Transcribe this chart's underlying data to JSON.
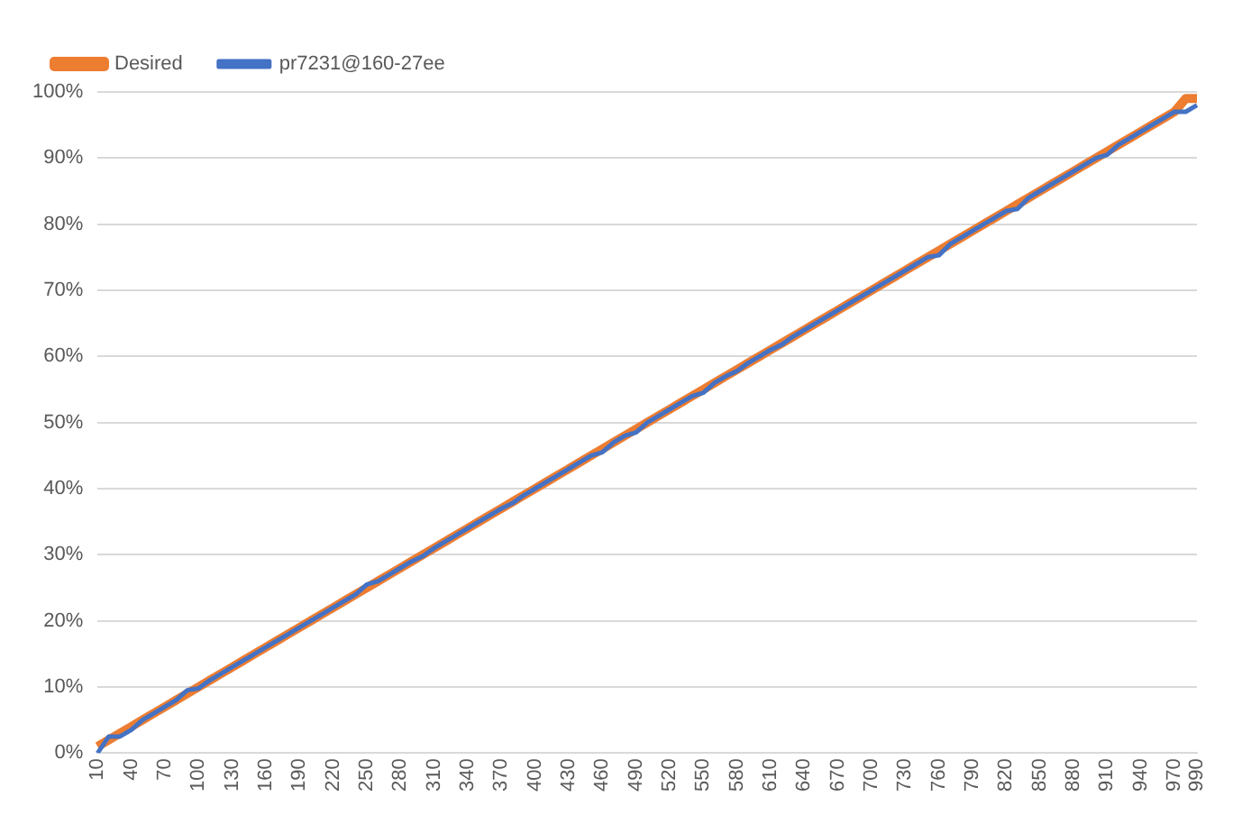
{
  "chart_data": {
    "type": "line",
    "categories": [
      "10",
      null,
      null,
      "40",
      null,
      null,
      "70",
      null,
      null,
      "100",
      null,
      null,
      "130",
      null,
      null,
      "160",
      null,
      null,
      "190",
      null,
      null,
      "220",
      null,
      null,
      "250",
      null,
      null,
      "280",
      null,
      null,
      "310",
      null,
      null,
      "340",
      null,
      null,
      "370",
      null,
      null,
      "400",
      null,
      null,
      "430",
      null,
      null,
      "460",
      null,
      null,
      "490",
      null,
      null,
      "520",
      null,
      null,
      "550",
      null,
      null,
      "580",
      null,
      null,
      "610",
      null,
      null,
      "640",
      null,
      null,
      "670",
      null,
      null,
      "700",
      null,
      null,
      "730",
      null,
      null,
      "760",
      null,
      null,
      "790",
      null,
      null,
      "820",
      null,
      null,
      "850",
      null,
      null,
      "880",
      null,
      null,
      "910",
      null,
      null,
      "940",
      null,
      null,
      "970",
      null,
      "990"
    ],
    "series": [
      {
        "name": "Desired",
        "color": "#ed7d31",
        "values": [
          1,
          2,
          3,
          4,
          5,
          6,
          7,
          8,
          9,
          10,
          11,
          12,
          13,
          14,
          15,
          16,
          17,
          18,
          19,
          20,
          21,
          22,
          23,
          24,
          25,
          26,
          27,
          28,
          29,
          30,
          31,
          32,
          33,
          34,
          35,
          36,
          37,
          38,
          39,
          40,
          41,
          42,
          43,
          44,
          45,
          46,
          47,
          48,
          49,
          50,
          51,
          52,
          53,
          54,
          55,
          56,
          57,
          58,
          59,
          60,
          61,
          62,
          63,
          64,
          65,
          66,
          67,
          68,
          69,
          70,
          71,
          72,
          73,
          74,
          75,
          76,
          77,
          78,
          79,
          80,
          81,
          82,
          83,
          84,
          85,
          86,
          87,
          88,
          89,
          90,
          91,
          92,
          93,
          94,
          95,
          96,
          97,
          99,
          99
        ]
      },
      {
        "name": "pr7231@160-27ee",
        "color": "#4472c4",
        "values": [
          0,
          2.5,
          2.5,
          3.5,
          5,
          6,
          7,
          8,
          9.5,
          9.8,
          11,
          12,
          13,
          14,
          15,
          16,
          17,
          18,
          19,
          20,
          21,
          22,
          23,
          24,
          25.5,
          26,
          27,
          28,
          29,
          29.8,
          31,
          32,
          33,
          34,
          35,
          36,
          37,
          37.8,
          39,
          40,
          41,
          42,
          43,
          44,
          45,
          45.5,
          47,
          48,
          48.5,
          50,
          51,
          52,
          53,
          54,
          54.5,
          56,
          57,
          57.8,
          59,
          60,
          61,
          61.8,
          63,
          64,
          65,
          66,
          67,
          68,
          69,
          70,
          71,
          72,
          73,
          74,
          75,
          75.3,
          77,
          78,
          79,
          80,
          81,
          82,
          82.3,
          84,
          85,
          86,
          87,
          88,
          89,
          90,
          90.5,
          92,
          93,
          94,
          95,
          96,
          97,
          97,
          98
        ]
      }
    ],
    "ylim": [
      0,
      100
    ],
    "yticks": [
      {
        "value": 0,
        "label": "0%"
      },
      {
        "value": 10,
        "label": "10%"
      },
      {
        "value": 20,
        "label": "20%"
      },
      {
        "value": 30,
        "label": "30%"
      },
      {
        "value": 40,
        "label": "40%"
      },
      {
        "value": 50,
        "label": "50%"
      },
      {
        "value": 60,
        "label": "60%"
      },
      {
        "value": 70,
        "label": "70%"
      },
      {
        "value": 80,
        "label": "80%"
      },
      {
        "value": 90,
        "label": "90%"
      },
      {
        "value": 100,
        "label": "100%"
      }
    ],
    "grid": "y",
    "legend": "top left",
    "marker": "none",
    "line_style": "solid"
  }
}
